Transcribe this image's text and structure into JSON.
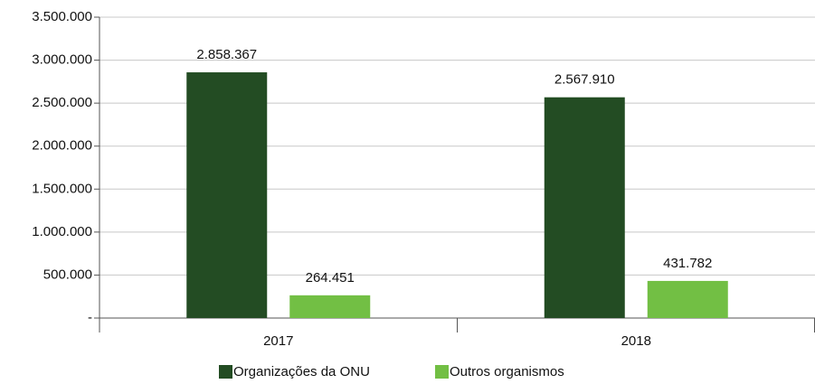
{
  "chart_data": {
    "type": "bar",
    "categories": [
      "2017",
      "2018"
    ],
    "series": [
      {
        "name": "Organizações da ONU",
        "color": "#234c23",
        "values": [
          2858367,
          2567910
        ],
        "value_labels": [
          "2.858.367",
          "2.567.910"
        ]
      },
      {
        "name": "Outros organismos",
        "color": "#72bf44",
        "values": [
          264451,
          431782
        ],
        "value_labels": [
          "264.451",
          "431.782"
        ]
      }
    ],
    "ylim": [
      0,
      3500000
    ],
    "yticks": [
      {
        "value": 0,
        "label": "-"
      },
      {
        "value": 500000,
        "label": "500.000"
      },
      {
        "value": 1000000,
        "label": "1.000.000"
      },
      {
        "value": 1500000,
        "label": "1.500.000"
      },
      {
        "value": 2000000,
        "label": "2.000.000"
      },
      {
        "value": 2500000,
        "label": "2.500.000"
      },
      {
        "value": 3000000,
        "label": "3.000.000"
      },
      {
        "value": 3500000,
        "label": "3.500.000"
      }
    ],
    "grid": true,
    "legend": "bottom"
  }
}
